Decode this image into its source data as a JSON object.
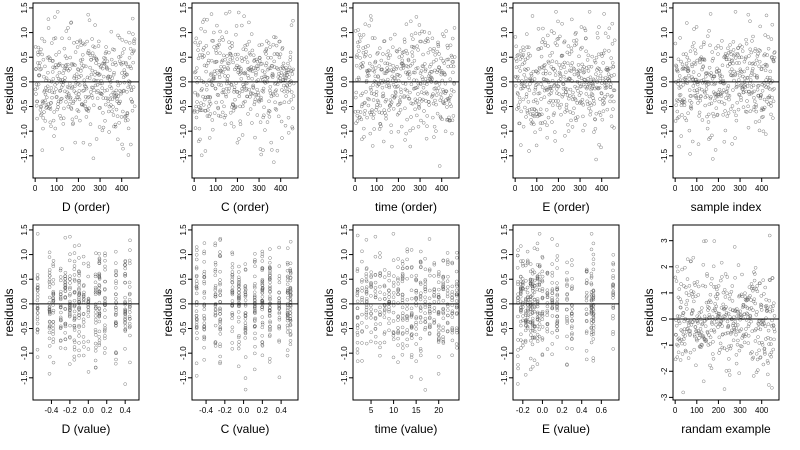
{
  "chart_data": [
    {
      "type": "scatter",
      "xlabel": "D (order)",
      "ylabel": "residuals",
      "xlim": [
        -10,
        480
      ],
      "ylim": [
        -1.95,
        1.6
      ],
      "xticks": [
        0,
        100,
        200,
        300,
        400
      ],
      "xticklabels": [
        "0",
        "100",
        "200",
        "300",
        "400"
      ],
      "yticks": [
        -1.5,
        -1.0,
        -0.5,
        0.0,
        0.5,
        1.0,
        1.5
      ],
      "yticklabels": [
        "-1.5",
        "-1.0",
        "-0.5",
        "0.0",
        "0.5",
        "1.0",
        "1.5"
      ],
      "hline": 0,
      "sample": "index",
      "n": 460,
      "seed": 11,
      "sd": 0.55,
      "points_desc": "~460 residuals vs. sample order, scattered around 0 between about -1.9 and 1.5"
    },
    {
      "type": "scatter",
      "xlabel": "C (order)",
      "ylabel": "residuals",
      "xlim": [
        -10,
        480
      ],
      "ylim": [
        -1.95,
        1.6
      ],
      "xticks": [
        0,
        100,
        200,
        300,
        400
      ],
      "xticklabels": [
        "0",
        "100",
        "200",
        "300",
        "400"
      ],
      "yticks": [
        -1.5,
        -1.0,
        -0.5,
        0.0,
        0.5,
        1.0,
        1.5
      ],
      "yticklabels": [
        "-1.5",
        "-1.0",
        "-0.5",
        "0.0",
        "0.5",
        "1.0",
        "1.5"
      ],
      "hline": 0,
      "sample": "index",
      "n": 460,
      "seed": 23,
      "sd": 0.55
    },
    {
      "type": "scatter",
      "xlabel": "time (order)",
      "ylabel": "residuals",
      "xlim": [
        -10,
        480
      ],
      "ylim": [
        -1.95,
        1.6
      ],
      "xticks": [
        0,
        100,
        200,
        300,
        400
      ],
      "xticklabels": [
        "0",
        "100",
        "200",
        "300",
        "400"
      ],
      "yticks": [
        -1.5,
        -1.0,
        -0.5,
        0.0,
        0.5,
        1.0,
        1.5
      ],
      "yticklabels": [
        "-1.5",
        "-1.0",
        "-0.5",
        "0.0",
        "0.5",
        "1.0",
        "1.5"
      ],
      "hline": 0,
      "sample": "index",
      "n": 460,
      "seed": 37,
      "sd": 0.55
    },
    {
      "type": "scatter",
      "xlabel": "E (order)",
      "ylabel": "residuals",
      "xlim": [
        -10,
        480
      ],
      "ylim": [
        -1.95,
        1.6
      ],
      "xticks": [
        0,
        100,
        200,
        300,
        400
      ],
      "xticklabels": [
        "0",
        "100",
        "200",
        "300",
        "400"
      ],
      "yticks": [
        -1.5,
        -1.0,
        -0.5,
        0.0,
        0.5,
        1.0,
        1.5
      ],
      "yticklabels": [
        "-1.5",
        "-1.0",
        "-0.5",
        "0.0",
        "0.5",
        "1.0",
        "1.5"
      ],
      "hline": 0,
      "sample": "index",
      "n": 460,
      "seed": 41,
      "sd": 0.55
    },
    {
      "type": "scatter",
      "xlabel": "sample index",
      "ylabel": "residuals",
      "xlim": [
        -10,
        480
      ],
      "ylim": [
        -1.95,
        1.6
      ],
      "xticks": [
        0,
        100,
        200,
        300,
        400
      ],
      "xticklabels": [
        "0",
        "100",
        "200",
        "300",
        "400"
      ],
      "yticks": [
        -1.5,
        -1.0,
        -0.5,
        0.0,
        0.5,
        1.0,
        1.5
      ],
      "yticklabels": [
        "-1.5",
        "-1.0",
        "-0.5",
        "0.0",
        "0.5",
        "1.0",
        "1.5"
      ],
      "hline": 0,
      "sample": "index",
      "n": 460,
      "seed": 53,
      "sd": 0.55
    },
    {
      "type": "scatter",
      "xlabel": "D (value)",
      "ylabel": "residuals",
      "xlim": [
        -0.6,
        0.55
      ],
      "ylim": [
        -1.95,
        1.6
      ],
      "xticks": [
        -0.4,
        -0.2,
        0.0,
        0.2,
        0.4
      ],
      "xticklabels": [
        "-0.4",
        "-0.2",
        "0.0",
        "0.2",
        "0.4"
      ],
      "yticks": [
        -1.5,
        -1.0,
        -0.5,
        0.0,
        0.5,
        1.0,
        1.5
      ],
      "yticklabels": [
        "-1.5",
        "-1.0",
        "-0.5",
        "0.0",
        "0.5",
        "1.0",
        "1.5"
      ],
      "hline": 0,
      "sample": "discrete",
      "x_levels": [
        -0.55,
        -0.42,
        -0.38,
        -0.3,
        -0.25,
        -0.2,
        -0.15,
        -0.1,
        -0.05,
        0.0,
        0.08,
        0.12,
        0.18,
        0.3,
        0.4,
        0.45
      ],
      "n": 460,
      "seed": 61,
      "sd": 0.55
    },
    {
      "type": "scatter",
      "xlabel": "C (value)",
      "ylabel": "residuals",
      "xlim": [
        -0.55,
        0.58
      ],
      "ylim": [
        -1.95,
        1.6
      ],
      "xticks": [
        -0.4,
        -0.2,
        0.0,
        0.2,
        0.4
      ],
      "xticklabels": [
        "-0.4",
        "-0.2",
        "0.0",
        "0.2",
        "0.4"
      ],
      "yticks": [
        -1.5,
        -1.0,
        -0.5,
        0.0,
        0.5,
        1.0,
        1.5
      ],
      "yticklabels": [
        "-1.5",
        "-1.0",
        "-0.5",
        "0.0",
        "0.5",
        "1.0",
        "1.5"
      ],
      "hline": 0,
      "sample": "discrete",
      "x_levels": [
        -0.5,
        -0.42,
        -0.3,
        -0.25,
        -0.12,
        -0.05,
        0.02,
        0.12,
        0.2,
        0.28,
        0.38,
        0.47,
        0.5
      ],
      "n": 460,
      "seed": 71,
      "sd": 0.55
    },
    {
      "type": "scatter",
      "xlabel": "time (value)",
      "ylabel": "residuals",
      "xlim": [
        1,
        24.5
      ],
      "ylim": [
        -1.95,
        1.6
      ],
      "xticks": [
        5,
        10,
        15,
        20
      ],
      "xticklabels": [
        "5",
        "10",
        "15",
        "20"
      ],
      "yticks": [
        -1.5,
        -1.0,
        -0.5,
        0.0,
        0.5,
        1.0,
        1.5
      ],
      "yticklabels": [
        "-1.5",
        "-1.0",
        "-0.5",
        "0.0",
        "0.5",
        "1.0",
        "1.5"
      ],
      "hline": 0,
      "sample": "discrete",
      "x_levels": [
        2,
        3,
        4,
        5,
        6,
        7,
        8,
        9,
        10,
        11,
        12,
        13,
        14,
        15,
        16,
        17,
        18,
        19,
        20,
        21,
        22,
        23,
        24
      ],
      "n": 460,
      "seed": 83,
      "sd": 0.55
    },
    {
      "type": "scatter",
      "xlabel": "E (value)",
      "ylabel": "residuals",
      "xlim": [
        -0.3,
        0.78
      ],
      "ylim": [
        -1.95,
        1.6
      ],
      "xticks": [
        -0.2,
        0.0,
        0.2,
        0.4,
        0.6
      ],
      "xticklabels": [
        "-0.2",
        "0.0",
        "0.2",
        "0.4",
        "0.6"
      ],
      "yticks": [
        -1.5,
        -1.0,
        -0.5,
        0.0,
        0.5,
        1.0,
        1.5
      ],
      "yticklabels": [
        "-1.5",
        "-1.0",
        "-0.5",
        "0.0",
        "0.5",
        "1.0",
        "1.5"
      ],
      "hline": 0,
      "sample": "discrete",
      "x_levels": [
        -0.25,
        -0.22,
        -0.2,
        -0.17,
        -0.15,
        -0.12,
        -0.1,
        -0.08,
        -0.05,
        -0.03,
        0.0,
        0.05,
        0.1,
        0.15,
        0.25,
        0.3,
        0.45,
        0.5,
        0.52,
        0.72
      ],
      "n": 460,
      "seed": 97,
      "sd": 0.55
    },
    {
      "type": "scatter",
      "xlabel": "randam example",
      "ylabel": "residuals",
      "xlim": [
        -10,
        480
      ],
      "ylim": [
        -3.1,
        3.6
      ],
      "xticks": [
        0,
        100,
        200,
        300,
        400
      ],
      "xticklabels": [
        "0",
        "100",
        "200",
        "300",
        "400"
      ],
      "yticks": [
        -3,
        -2,
        -1,
        0,
        1,
        2,
        3
      ],
      "yticklabels": [
        "-3",
        "-2",
        "-1",
        "0",
        "1",
        "2",
        "3"
      ],
      "hline": 0,
      "sample": "index",
      "n": 460,
      "seed": 107,
      "sd": 1.0
    }
  ]
}
